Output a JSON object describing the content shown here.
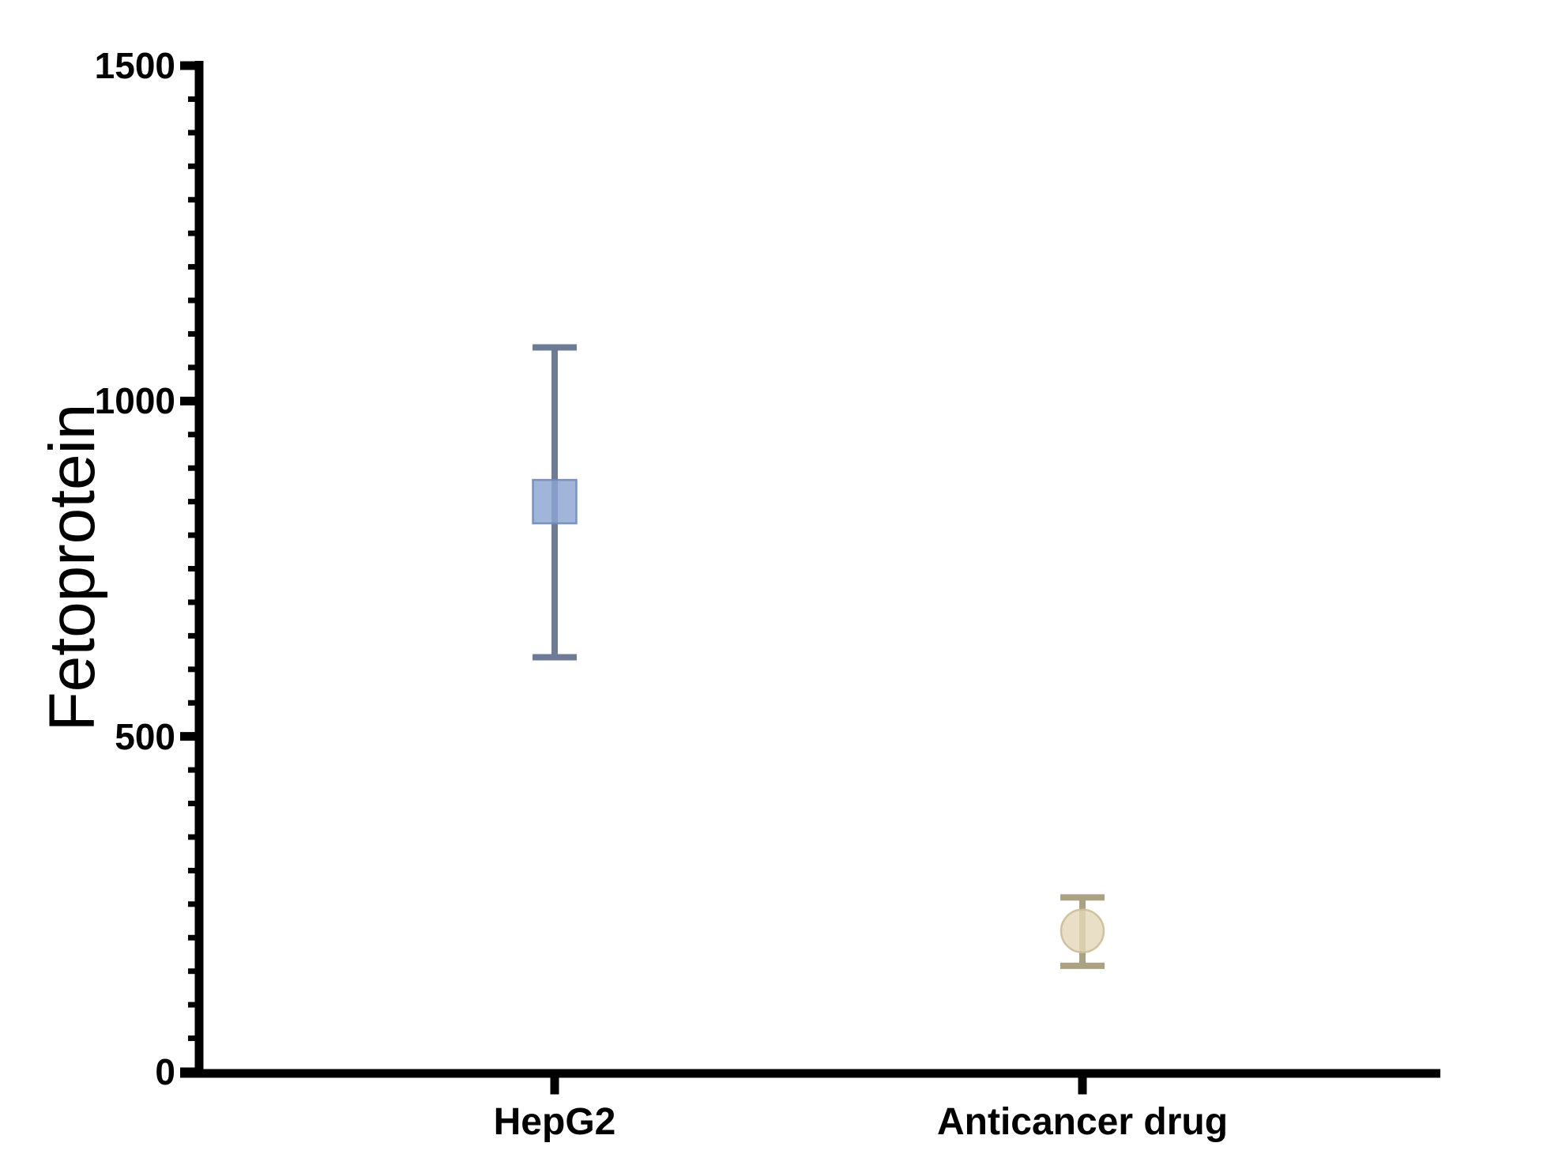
{
  "figure": {
    "background_color": "#ffffff",
    "axis_color": "#000000",
    "text_color": "#000000"
  },
  "chart_data": {
    "type": "scatter",
    "title": "",
    "xlabel": "",
    "ylabel": "Fetoprotein",
    "ylim": [
      0,
      1500
    ],
    "yticks": [
      0,
      500,
      1000,
      1500
    ],
    "ytick_labels": [
      "0",
      "500",
      "1000",
      "1500"
    ],
    "minor_tick_step": 50,
    "grid": false,
    "legend_position": "none",
    "categories": [
      "HepG2",
      "Anticancer drug"
    ],
    "series": [
      {
        "name": "HepG2",
        "marker": "square",
        "mean": 850,
        "error_upper": 1080,
        "error_lower": 618,
        "marker_color": "#8ca3d2",
        "marker_edge_color": "#7089ba",
        "error_bar_color": "#6e7b94"
      },
      {
        "name": "Anticancer drug",
        "marker": "circle",
        "mean": 210,
        "error_upper": 260,
        "error_lower": 158,
        "marker_color": "#e3d8ba",
        "marker_edge_color": "#cbbd97",
        "error_bar_color": "#aba183"
      }
    ]
  }
}
